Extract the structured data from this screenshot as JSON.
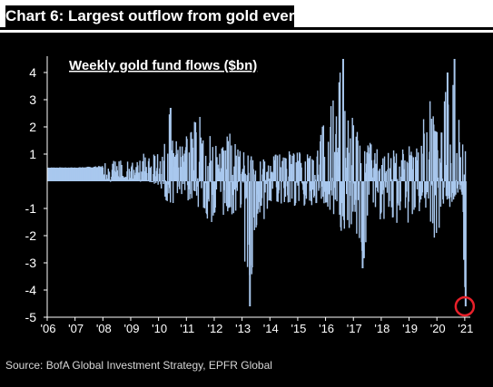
{
  "chart_data": {
    "type": "bar",
    "title": "Chart 6: Largest outflow from gold ever",
    "subtitle": "Weekly gold fund flows ($bn)",
    "source": "Source: BofA Global Investment Strategy, EPFR Global",
    "x": [
      "'06",
      "'07",
      "'08",
      "'09",
      "'10",
      "'11",
      "'12",
      "'13",
      "'14",
      "'15",
      "'16",
      "'17",
      "'18",
      "'19",
      "'20",
      "'21"
    ],
    "xlim": [
      2006,
      2021.2
    ],
    "ylim": [
      -5,
      4.6
    ],
    "yticks": [
      4,
      3,
      2,
      1,
      -1,
      -2,
      -3,
      -4,
      -5
    ],
    "series": [
      {
        "values_envelope": [
          {
            "year": 2006.0,
            "max": 0.55,
            "min": 0.45
          },
          {
            "year": 2007.0,
            "max": 0.55,
            "min": 0.45
          },
          {
            "year": 2008.0,
            "max": 0.75,
            "min": 0.3
          },
          {
            "year": 2008.5,
            "max": 0.8,
            "min": 0.2
          },
          {
            "year": 2009.0,
            "max": 0.7,
            "min": 0.2
          },
          {
            "year": 2009.5,
            "max": 1.1,
            "min": 0.1
          },
          {
            "year": 2010.0,
            "max": 1.0,
            "min": -0.2
          },
          {
            "year": 2010.4,
            "max": 2.7,
            "min": -1.0
          },
          {
            "year": 2010.7,
            "max": 1.3,
            "min": -0.5
          },
          {
            "year": 2011.0,
            "max": 2.0,
            "min": -0.8
          },
          {
            "year": 2011.5,
            "max": 2.4,
            "min": -1.1
          },
          {
            "year": 2011.8,
            "max": 1.8,
            "min": -1.6
          },
          {
            "year": 2012.0,
            "max": 1.5,
            "min": -1.4
          },
          {
            "year": 2012.5,
            "max": 2.0,
            "min": -1.2
          },
          {
            "year": 2012.9,
            "max": 1.2,
            "min": -1.3
          },
          {
            "year": 2013.2,
            "max": 1.0,
            "min": -4.6
          },
          {
            "year": 2013.5,
            "max": 0.9,
            "min": -2.0
          },
          {
            "year": 2013.9,
            "max": 0.8,
            "min": -1.2
          },
          {
            "year": 2014.5,
            "max": 1.2,
            "min": -0.8
          },
          {
            "year": 2015.0,
            "max": 1.1,
            "min": -1.0
          },
          {
            "year": 2015.5,
            "max": 1.0,
            "min": -0.9
          },
          {
            "year": 2016.0,
            "max": 2.6,
            "min": -1.0
          },
          {
            "year": 2016.6,
            "max": 4.5,
            "min": -2.2
          },
          {
            "year": 2017.0,
            "max": 2.5,
            "min": -1.5
          },
          {
            "year": 2017.3,
            "max": 1.5,
            "min": -3.2
          },
          {
            "year": 2017.7,
            "max": 1.5,
            "min": -1.2
          },
          {
            "year": 2018.0,
            "max": 1.0,
            "min": -1.5
          },
          {
            "year": 2018.5,
            "max": 1.2,
            "min": -1.8
          },
          {
            "year": 2019.0,
            "max": 1.3,
            "min": -1.5
          },
          {
            "year": 2019.5,
            "max": 2.5,
            "min": -1.0
          },
          {
            "year": 2019.8,
            "max": 3.3,
            "min": -1.6
          },
          {
            "year": 2020.0,
            "max": 2.0,
            "min": -3.0
          },
          {
            "year": 2020.3,
            "max": 4.0,
            "min": -1.2
          },
          {
            "year": 2020.6,
            "max": 4.5,
            "min": -0.7
          },
          {
            "year": 2020.85,
            "max": 1.8,
            "min": -0.3
          },
          {
            "year": 2021.0,
            "max": 1.3,
            "min": -4.6
          }
        ]
      }
    ],
    "grid": false,
    "colors": {
      "bars": "#a9c8ee",
      "background": "#000000",
      "axis": "#ffffff",
      "highlight": "#e8202a"
    },
    "annotations": [
      {
        "type": "circle",
        "x": 2021.0,
        "y": -4.6
      }
    ]
  }
}
